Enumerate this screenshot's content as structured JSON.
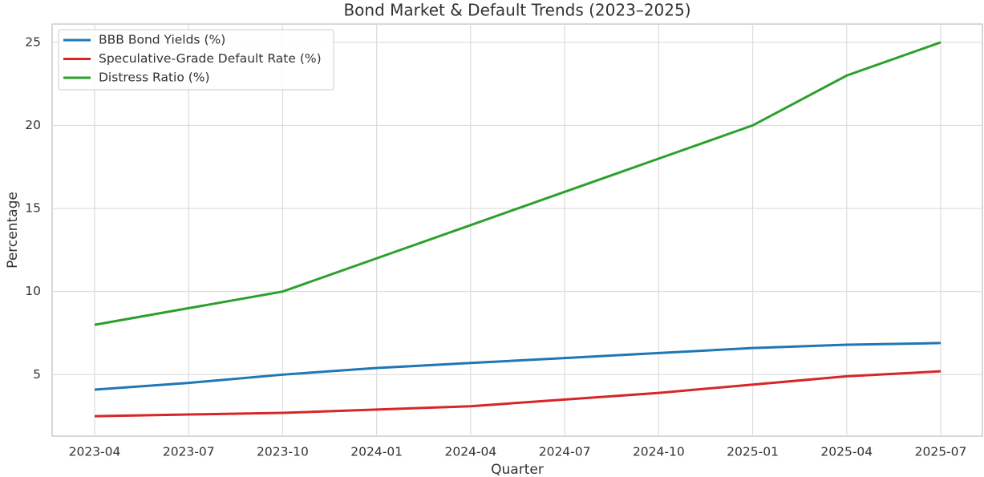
{
  "chart_data": {
    "type": "line",
    "title": "Bond Market & Default Trends (2023–2025)",
    "x_label": "Quarter",
    "y_label": "Percentage",
    "categories": [
      "2023-04",
      "2023-07",
      "2023-10",
      "2024-01",
      "2024-04",
      "2024-07",
      "2024-10",
      "2025-01",
      "2025-04",
      "2025-07"
    ],
    "series": [
      {
        "name": "BBB Bond Yields (%)",
        "color": "#1f77b4",
        "values": [
          4.1,
          4.5,
          5.0,
          5.4,
          5.7,
          6.0,
          6.3,
          6.6,
          6.8,
          6.9
        ]
      },
      {
        "name": "Speculative-Grade Default Rate (%)",
        "color": "#d62728",
        "values": [
          2.5,
          2.6,
          2.7,
          2.9,
          3.1,
          3.5,
          3.9,
          4.4,
          4.9,
          5.2
        ]
      },
      {
        "name": "Distress Ratio (%)",
        "color": "#2ca02c",
        "values": [
          8,
          9,
          10,
          12,
          14,
          16,
          18,
          20,
          23,
          25
        ]
      }
    ],
    "ylim": [
      1.3,
      26.1
    ],
    "yticks": [
      5,
      10,
      15,
      20,
      25
    ],
    "grid": true,
    "legend": "upper-left"
  }
}
